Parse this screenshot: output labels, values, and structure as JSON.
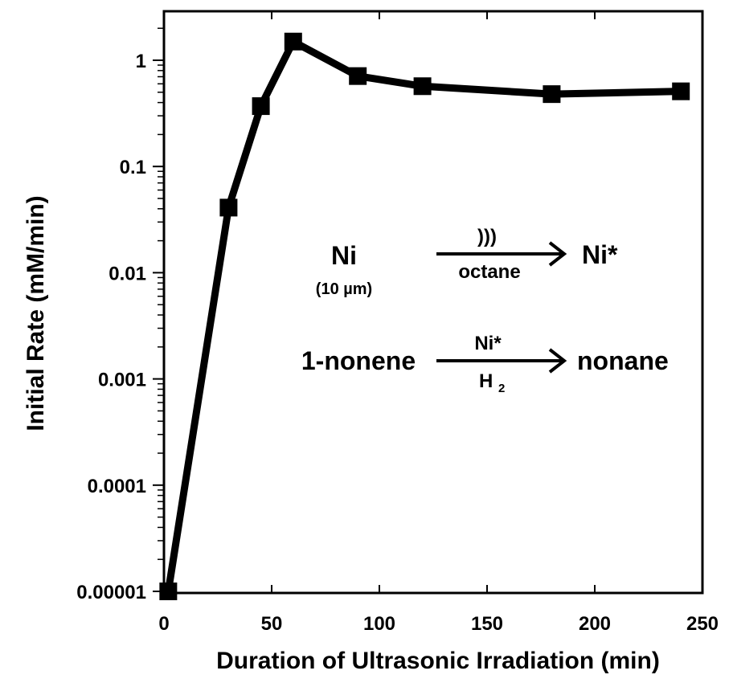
{
  "chart_data": {
    "type": "line",
    "xlabel": "Duration of Ultrasonic Irradiation (min)",
    "ylabel": "Initial Rate  (mM/min)",
    "xlim": [
      0,
      250
    ],
    "ylim": [
      1e-05,
      1
    ],
    "yscale": "log",
    "xticks": [
      "0",
      "50",
      "100",
      "150",
      "200",
      "250"
    ],
    "yticks": [
      "0.00001",
      "0.0001",
      "0.001",
      "0.01",
      "0.1",
      "1"
    ],
    "series": [
      {
        "marker": "square",
        "color": "#000000",
        "x": [
          2,
          30,
          45,
          60,
          90,
          120,
          180,
          240
        ],
        "y": [
          1e-05,
          0.041,
          0.37,
          1.5,
          0.71,
          0.57,
          0.48,
          0.51
        ]
      }
    ],
    "annotations": {
      "reaction1": {
        "reactant": "Ni",
        "reactant_note": "(10 µm)",
        "above_arrow": ")))",
        "below_arrow": "octane",
        "product": "Ni*"
      },
      "reaction2": {
        "reactant": "1-nonene",
        "above_arrow": "Ni*",
        "below_arrow_main": "H",
        "below_arrow_sub": "2",
        "product": "nonane"
      }
    }
  }
}
